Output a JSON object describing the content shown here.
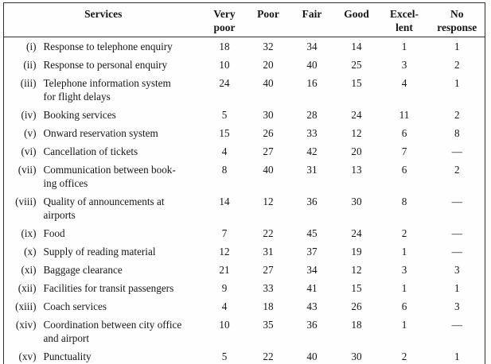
{
  "table": {
    "columns": [
      {
        "line1": "Services",
        "line2": ""
      },
      {
        "line1": "Very",
        "line2": "poor"
      },
      {
        "line1": "Poor",
        "line2": ""
      },
      {
        "line1": "Fair",
        "line2": ""
      },
      {
        "line1": "Good",
        "line2": ""
      },
      {
        "line1": "Excel-",
        "line2": "lent"
      },
      {
        "line1": "No",
        "line2": "response"
      }
    ],
    "rows": [
      {
        "num": "(i)",
        "service1": "Response to telephone enquiry",
        "service2": "",
        "values": [
          "18",
          "32",
          "34",
          "14",
          "1",
          "1"
        ]
      },
      {
        "num": "(ii)",
        "service1": "Response to personal enquiry",
        "service2": "",
        "values": [
          "10",
          "20",
          "40",
          "25",
          "3",
          "2"
        ]
      },
      {
        "num": "(iii)",
        "service1": "Telephone information system",
        "service2": "for flight delays",
        "values": [
          "24",
          "40",
          "16",
          "15",
          "4",
          "1"
        ]
      },
      {
        "num": "(iv)",
        "service1": "Booking services",
        "service2": "",
        "values": [
          "5",
          "30",
          "28",
          "24",
          "11",
          "2"
        ]
      },
      {
        "num": "(v)",
        "service1": "Onward reservation system",
        "service2": "",
        "values": [
          "15",
          "26",
          "33",
          "12",
          "6",
          "8"
        ]
      },
      {
        "num": "(vi)",
        "service1": "Cancellation of tickets",
        "service2": "",
        "values": [
          "4",
          "27",
          "42",
          "20",
          "7",
          "—"
        ]
      },
      {
        "num": "(vii)",
        "service1": "Communication between book-",
        "service2": "ing offices",
        "values": [
          "8",
          "40",
          "31",
          "13",
          "6",
          "2"
        ]
      },
      {
        "num": "(viii)",
        "service1": "Quality of announcements at",
        "service2": "airports",
        "values": [
          "14",
          "12",
          "36",
          "30",
          "8",
          "—"
        ]
      },
      {
        "num": "(ix)",
        "service1": "Food",
        "service2": "",
        "values": [
          "7",
          "22",
          "45",
          "24",
          "2",
          "—"
        ]
      },
      {
        "num": "(x)",
        "service1": "Supply of reading material",
        "service2": "",
        "values": [
          "12",
          "31",
          "37",
          "19",
          "1",
          "—"
        ]
      },
      {
        "num": "(xi)",
        "service1": "Baggage clearance",
        "service2": "",
        "values": [
          "21",
          "27",
          "34",
          "12",
          "3",
          "3"
        ]
      },
      {
        "num": "(xii)",
        "service1": "Facilities for transit passengers",
        "service2": "",
        "values": [
          "9",
          "33",
          "41",
          "15",
          "1",
          "1"
        ]
      },
      {
        "num": "(xiii)",
        "service1": "Coach services",
        "service2": "",
        "values": [
          "4",
          "18",
          "43",
          "26",
          "6",
          "3"
        ]
      },
      {
        "num": "(xiv)",
        "service1": "Coordination between city office",
        "service2": "and airport",
        "values": [
          "10",
          "35",
          "36",
          "18",
          "1",
          "—"
        ]
      },
      {
        "num": "(xv)",
        "service1": "Punctuality",
        "service2": "",
        "values": [
          "5",
          "22",
          "40",
          "30",
          "2",
          "1"
        ]
      }
    ]
  }
}
